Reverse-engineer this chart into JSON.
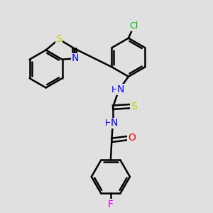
{
  "bg_color": "#e0e0e0",
  "bond_color": "#000000",
  "bond_width": 1.8,
  "atom_colors": {
    "S": "#cccc00",
    "N": "#0000ff",
    "O": "#ff0000",
    "Cl": "#00bb00",
    "F": "#ee00ee",
    "H": "#0000ff"
  },
  "font_size": 10,
  "fig_size": [
    3.0,
    3.0
  ],
  "dpi": 100
}
